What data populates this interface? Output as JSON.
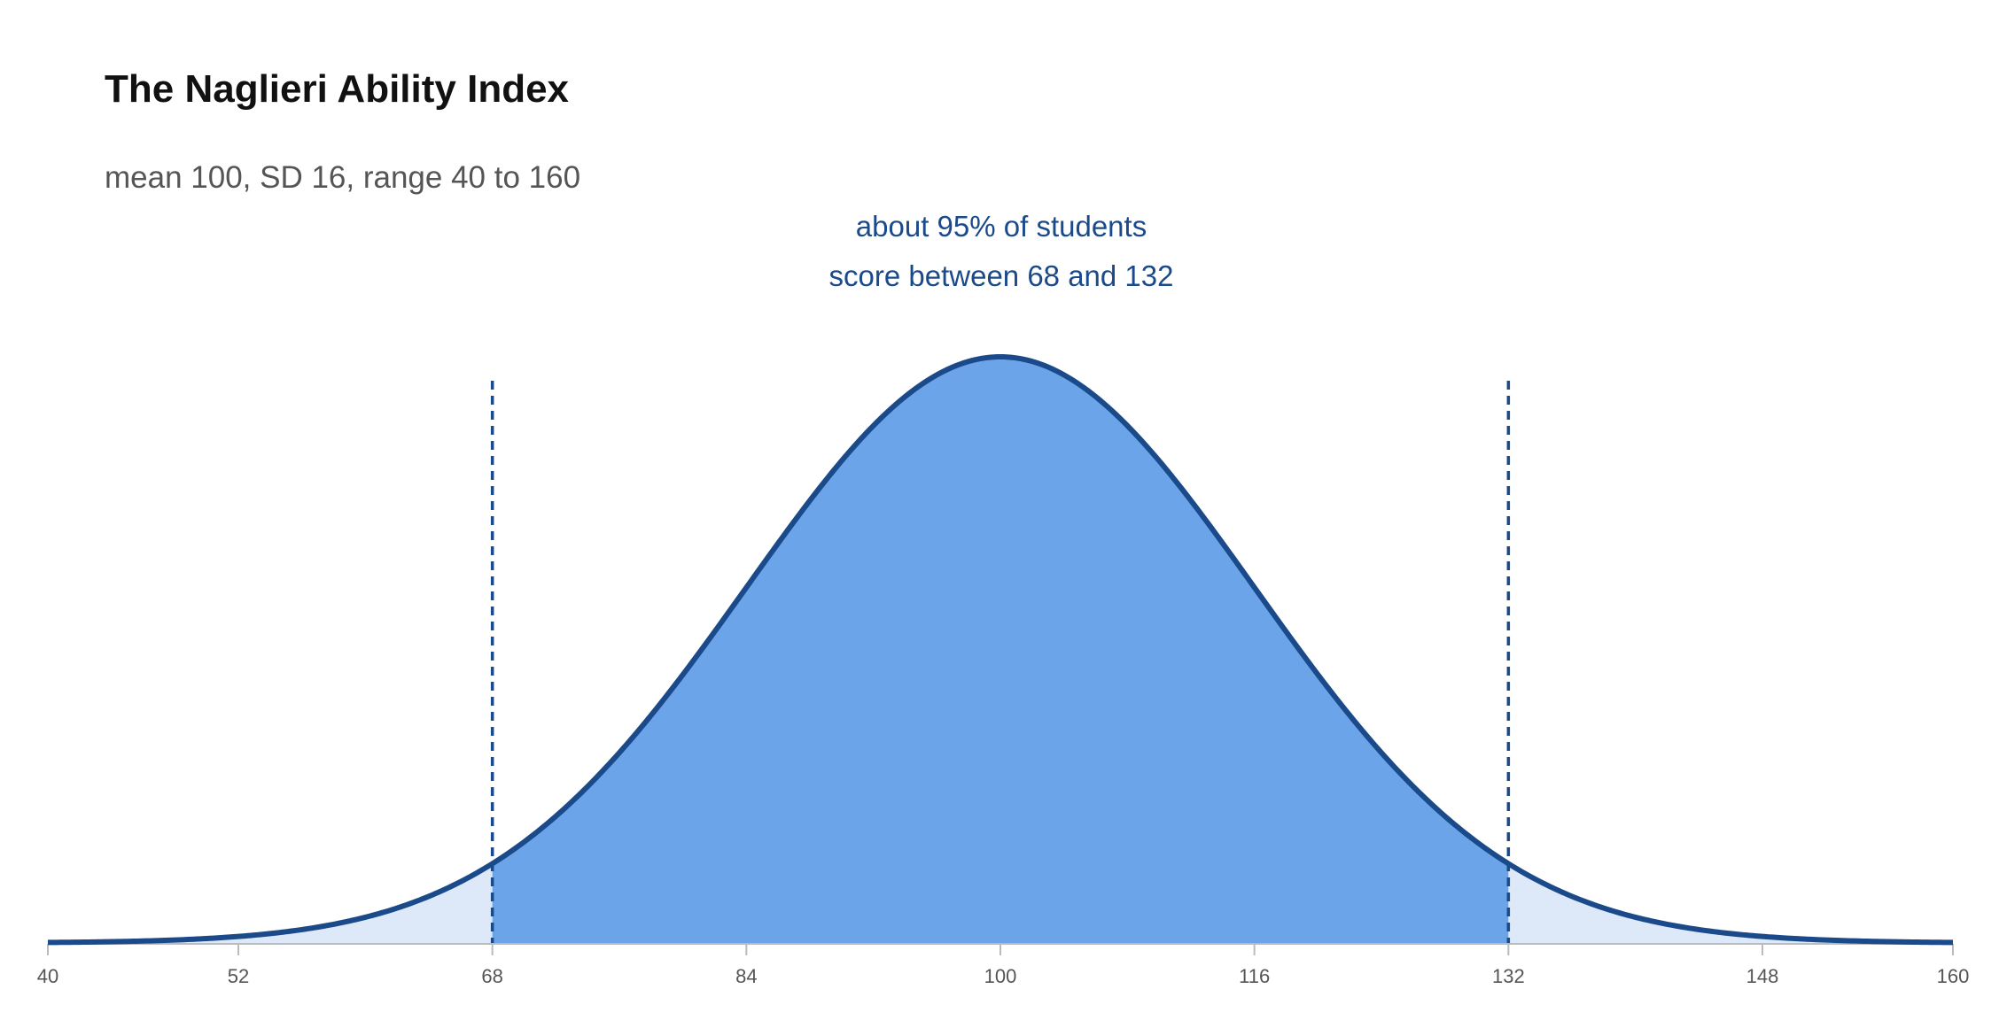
{
  "chart_data": {
    "type": "area",
    "title": "The Naglieri Ability Index",
    "subtitle": "mean 100, SD 16, range 40 to 160",
    "xlabel": "",
    "ylabel": "",
    "distribution": {
      "kind": "normal",
      "mean": 100,
      "sd": 16
    },
    "xlim": [
      40,
      160
    ],
    "x_ticks": [
      40,
      52,
      68,
      84,
      100,
      116,
      132,
      148,
      160
    ],
    "highlight_range": [
      68,
      132
    ],
    "reference_lines": [
      68,
      132
    ],
    "annotation": {
      "lines": [
        "about 95% of students",
        "score between 68 and 132"
      ]
    },
    "grid": false,
    "legend": "none",
    "colors": {
      "curve": "#1b4a8a",
      "highlight_fill": "#6ba4e8",
      "tail_fill": "#dde9f8",
      "reference_line": "#1b4a8a",
      "axis": "#bbbbbb",
      "annotation_text": "#1b4a8a"
    }
  }
}
